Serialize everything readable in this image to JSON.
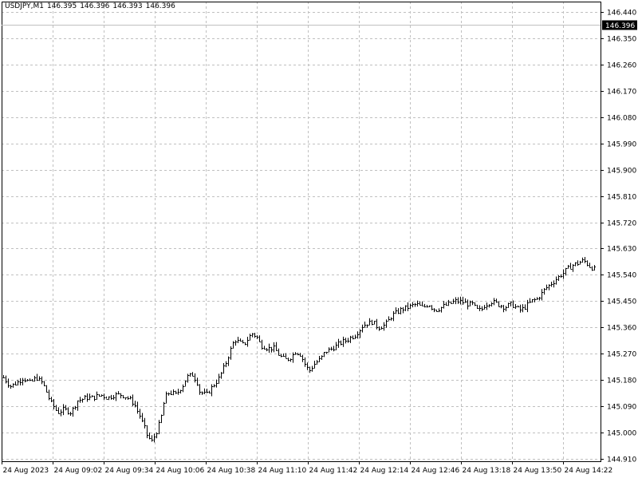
{
  "header": {
    "symbol": "USDJPY,M1",
    "open": "146.395",
    "high": "146.396",
    "low": "146.393",
    "close": "146.396"
  },
  "current_price_label": "146.396",
  "colors": {
    "background": "#ffffff",
    "bars": "#000000",
    "grid": "#c0c0c0",
    "axis": "#000000",
    "price_tag_bg": "#000000",
    "price_tag_text": "#ffffff"
  },
  "chart_data": {
    "type": "ohlc",
    "symbol": "USDJPY",
    "timeframe": "M1",
    "ylim": [
      144.91,
      146.44
    ],
    "y_ticks": [
      "146.440",
      "146.350",
      "146.260",
      "146.170",
      "146.080",
      "145.990",
      "145.900",
      "145.810",
      "145.720",
      "145.630",
      "145.540",
      "145.450",
      "145.360",
      "145.270",
      "145.180",
      "145.090",
      "145.000",
      "144.910"
    ],
    "x_ticks": [
      "24 Aug 2023",
      "24 Aug 09:02",
      "24 Aug 09:34",
      "24 Aug 10:06",
      "24 Aug 10:38",
      "24 Aug 11:10",
      "24 Aug 11:42",
      "24 Aug 12:14",
      "24 Aug 12:46",
      "24 Aug 13:18",
      "24 Aug 13:50",
      "24 Aug 14:22"
    ],
    "grid": true,
    "current_price": 146.396,
    "bar_count": 248,
    "close_path": [
      [
        0,
        145.19
      ],
      [
        6,
        145.16
      ],
      [
        12,
        145.17
      ],
      [
        18,
        145.19
      ],
      [
        24,
        145.17
      ],
      [
        30,
        145.19
      ],
      [
        36,
        145.17
      ],
      [
        44,
        145.1
      ],
      [
        50,
        145.07
      ],
      [
        56,
        145.08
      ],
      [
        62,
        145.07
      ],
      [
        68,
        145.11
      ],
      [
        76,
        145.12
      ],
      [
        82,
        145.12
      ],
      [
        90,
        145.13
      ],
      [
        96,
        145.12
      ],
      [
        102,
        145.13
      ],
      [
        108,
        145.13
      ],
      [
        114,
        145.12
      ],
      [
        120,
        145.1
      ],
      [
        126,
        145.05
      ],
      [
        132,
        144.99
      ],
      [
        136,
        144.97
      ],
      [
        140,
        145.0
      ],
      [
        144,
        145.04
      ],
      [
        148,
        145.12
      ],
      [
        152,
        145.14
      ],
      [
        158,
        145.13
      ],
      [
        164,
        145.16
      ],
      [
        168,
        145.19
      ],
      [
        174,
        145.2
      ],
      [
        178,
        145.17
      ],
      [
        180,
        145.14
      ],
      [
        186,
        145.13
      ],
      [
        192,
        145.16
      ],
      [
        198,
        145.19
      ],
      [
        204,
        145.24
      ],
      [
        206,
        145.26
      ],
      [
        212,
        145.32
      ],
      [
        216,
        145.31
      ],
      [
        220,
        145.3
      ],
      [
        224,
        145.32
      ],
      [
        228,
        145.34
      ],
      [
        232,
        145.33
      ],
      [
        236,
        145.3
      ],
      [
        242,
        145.29
      ],
      [
        248,
        145.29
      ],
      [
        254,
        145.26
      ],
      [
        260,
        145.25
      ],
      [
        264,
        145.26
      ],
      [
        268,
        145.28
      ],
      [
        272,
        145.27
      ],
      [
        276,
        145.24
      ],
      [
        280,
        145.21
      ],
      [
        286,
        145.24
      ],
      [
        290,
        145.25
      ],
      [
        296,
        145.28
      ],
      [
        302,
        145.29
      ],
      [
        310,
        145.31
      ],
      [
        316,
        145.32
      ],
      [
        324,
        145.34
      ],
      [
        330,
        145.37
      ],
      [
        338,
        145.38
      ],
      [
        344,
        145.36
      ],
      [
        350,
        145.37
      ],
      [
        356,
        145.4
      ],
      [
        364,
        145.42
      ],
      [
        370,
        145.43
      ],
      [
        378,
        145.44
      ],
      [
        384,
        145.43
      ],
      [
        390,
        145.44
      ],
      [
        396,
        145.42
      ],
      [
        402,
        145.43
      ],
      [
        408,
        145.44
      ],
      [
        414,
        145.45
      ],
      [
        420,
        145.45
      ],
      [
        426,
        145.44
      ],
      [
        430,
        145.44
      ],
      [
        434,
        145.42
      ],
      [
        438,
        145.42
      ],
      [
        442,
        145.44
      ],
      [
        448,
        145.45
      ],
      [
        454,
        145.44
      ],
      [
        460,
        145.43
      ],
      [
        466,
        145.44
      ],
      [
        470,
        145.43
      ],
      [
        474,
        145.42
      ],
      [
        478,
        145.43
      ],
      [
        484,
        145.45
      ],
      [
        490,
        145.46
      ],
      [
        496,
        145.49
      ],
      [
        502,
        145.51
      ],
      [
        508,
        145.53
      ],
      [
        514,
        145.55
      ],
      [
        520,
        145.57
      ],
      [
        526,
        145.58
      ],
      [
        532,
        145.59
      ],
      [
        538,
        145.57
      ],
      [
        542,
        145.56
      ]
    ]
  }
}
